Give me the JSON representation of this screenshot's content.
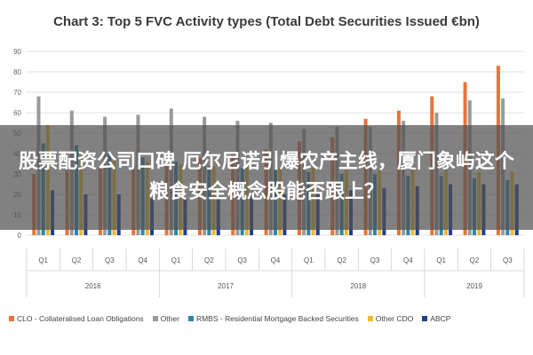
{
  "chart_data": {
    "type": "bar",
    "title": "Chart 3: Top 5 FVC Activity types (Total Debt Securities Issued €bn)",
    "xlabel": "",
    "ylabel": "",
    "ylim": [
      0,
      90
    ],
    "yticks": [
      0,
      10,
      20,
      30,
      40,
      50,
      60,
      70,
      80,
      90
    ],
    "grid": true,
    "legend_position": "bottom",
    "years": [
      {
        "label": "2016",
        "count": 4
      },
      {
        "label": "2017",
        "count": 4
      },
      {
        "label": "2018",
        "count": 4
      },
      {
        "label": "2019",
        "count": 3
      }
    ],
    "categories": [
      "Q1",
      "Q2",
      "Q3",
      "Q4",
      "Q1",
      "Q2",
      "Q3",
      "Q4",
      "Q1",
      "Q2",
      "Q3",
      "Q4",
      "Q1",
      "Q2",
      "Q3"
    ],
    "series": [
      {
        "name": "CLO - Collateralised Loan Obligations",
        "color": "#e8743b",
        "values": [
          30,
          32,
          33,
          34,
          35,
          38,
          40,
          42,
          46,
          48,
          57,
          61,
          68,
          75,
          83
        ]
      },
      {
        "name": "Other",
        "color": "#9a9a9a",
        "values": [
          68,
          61,
          58,
          59,
          62,
          58,
          56,
          55,
          52,
          53,
          53,
          56,
          60,
          66,
          67
        ]
      },
      {
        "name": "RMBS - Residential Mortgage Backed Securities",
        "color": "#2e86ab",
        "values": [
          45,
          44,
          40,
          38,
          36,
          34,
          33,
          32,
          31,
          30,
          30,
          29,
          29,
          28,
          27
        ]
      },
      {
        "name": "Other CDO",
        "color": "#f1b92b",
        "values": [
          54,
          38,
          37,
          36,
          35,
          34,
          34,
          33,
          33,
          32,
          32,
          32,
          32,
          31,
          31
        ]
      },
      {
        "name": "ABCP",
        "color": "#1f3f8f",
        "values": [
          22,
          20,
          20,
          18,
          18,
          19,
          20,
          20,
          21,
          22,
          23,
          24,
          25,
          25,
          25
        ]
      }
    ]
  },
  "overlay": {
    "text": "股票配资公司口碑 厄尔尼诺引爆农产主线，厦门象屿这个粮食安全概念股能否跟上？"
  }
}
